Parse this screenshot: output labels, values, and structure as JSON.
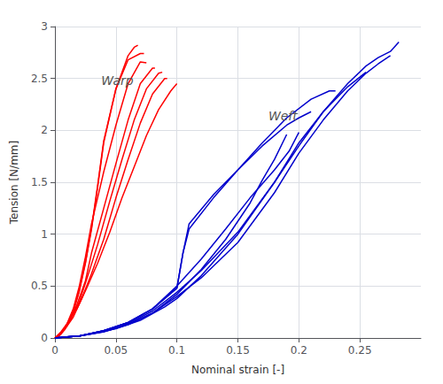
{
  "chart_data": {
    "type": "line",
    "xlabel": "Nominal strain [-]",
    "ylabel": "Tension [N/mm]",
    "xlim": [
      0,
      0.3
    ],
    "ylim": [
      0,
      3.0
    ],
    "xticks": [
      0,
      0.05,
      0.1,
      0.15,
      0.2,
      0.25
    ],
    "yticks": [
      0,
      0.5,
      1.0,
      1.5,
      2.0,
      2.5,
      3.0
    ],
    "grid": true,
    "annotations": [
      {
        "text": "Warp",
        "x": 0.038,
        "y": 2.42
      },
      {
        "text": "Weft",
        "x": 0.175,
        "y": 2.08
      }
    ],
    "series": [
      {
        "color": "#ff0000",
        "line_style": "solid",
        "x": [
          0.0,
          0.002,
          0.005,
          0.01,
          0.015,
          0.02,
          0.025,
          0.03,
          0.035,
          0.04,
          0.05,
          0.06,
          0.065,
          0.068
        ],
        "values": [
          0.0,
          0.01,
          0.04,
          0.12,
          0.25,
          0.45,
          0.72,
          1.05,
          1.45,
          1.88,
          2.4,
          2.72,
          2.8,
          2.82
        ]
      },
      {
        "color": "#ff0000",
        "line_style": "solid",
        "x": [
          0.0,
          0.002,
          0.005,
          0.01,
          0.015,
          0.02,
          0.025,
          0.03,
          0.035,
          0.04,
          0.05,
          0.06,
          0.07,
          0.073
        ],
        "values": [
          0.0,
          0.01,
          0.04,
          0.12,
          0.26,
          0.46,
          0.73,
          1.06,
          1.47,
          1.9,
          2.4,
          2.68,
          2.74,
          2.74
        ]
      },
      {
        "color": "#ff0000",
        "line_style": "solid",
        "x": [
          0.0,
          0.003,
          0.006,
          0.01,
          0.015,
          0.02,
          0.025,
          0.03,
          0.04,
          0.05,
          0.06,
          0.07,
          0.075
        ],
        "values": [
          0.0,
          0.02,
          0.06,
          0.14,
          0.28,
          0.5,
          0.78,
          1.1,
          1.6,
          2.05,
          2.45,
          2.66,
          2.65
        ]
      },
      {
        "color": "#ff0000",
        "line_style": "solid",
        "x": [
          0.0,
          0.003,
          0.007,
          0.012,
          0.018,
          0.025,
          0.03,
          0.04,
          0.05,
          0.06,
          0.07,
          0.08,
          0.082
        ],
        "values": [
          0.0,
          0.02,
          0.07,
          0.16,
          0.32,
          0.55,
          0.82,
          1.25,
          1.68,
          2.1,
          2.45,
          2.6,
          2.6
        ]
      },
      {
        "color": "#ff0000",
        "line_style": "solid",
        "x": [
          0.0,
          0.004,
          0.008,
          0.013,
          0.02,
          0.027,
          0.035,
          0.045,
          0.055,
          0.065,
          0.075,
          0.085,
          0.088
        ],
        "values": [
          0.0,
          0.03,
          0.08,
          0.18,
          0.35,
          0.6,
          0.9,
          1.32,
          1.72,
          2.1,
          2.4,
          2.55,
          2.56
        ]
      },
      {
        "color": "#ff0000",
        "line_style": "solid",
        "x": [
          0.0,
          0.004,
          0.009,
          0.015,
          0.022,
          0.03,
          0.04,
          0.05,
          0.06,
          0.07,
          0.08,
          0.09,
          0.092
        ],
        "values": [
          0.0,
          0.04,
          0.1,
          0.2,
          0.38,
          0.62,
          0.95,
          1.35,
          1.72,
          2.07,
          2.35,
          2.5,
          2.5
        ]
      },
      {
        "color": "#ff0000",
        "line_style": "solid",
        "x": [
          0.0,
          0.005,
          0.01,
          0.018,
          0.026,
          0.035,
          0.045,
          0.055,
          0.065,
          0.075,
          0.085,
          0.095,
          0.1
        ],
        "values": [
          0.0,
          0.06,
          0.14,
          0.28,
          0.48,
          0.72,
          1.02,
          1.35,
          1.65,
          1.95,
          2.2,
          2.38,
          2.45
        ]
      },
      {
        "color": "#0000cc",
        "line_style": "solid",
        "x": [
          0.0,
          0.01,
          0.02,
          0.03,
          0.05,
          0.07,
          0.09,
          0.1,
          0.12,
          0.15,
          0.18,
          0.2,
          0.22,
          0.24,
          0.255,
          0.265,
          0.275,
          0.282
        ],
        "values": [
          0.0,
          0.01,
          0.02,
          0.04,
          0.09,
          0.17,
          0.3,
          0.38,
          0.6,
          1.0,
          1.5,
          1.85,
          2.18,
          2.45,
          2.62,
          2.7,
          2.76,
          2.85
        ]
      },
      {
        "color": "#0000cc",
        "line_style": "solid",
        "x": [
          0.0,
          0.01,
          0.02,
          0.04,
          0.06,
          0.08,
          0.1,
          0.12,
          0.15,
          0.18,
          0.2,
          0.22,
          0.24,
          0.255,
          0.265,
          0.275
        ],
        "values": [
          0.0,
          0.01,
          0.02,
          0.06,
          0.13,
          0.24,
          0.4,
          0.58,
          0.92,
          1.4,
          1.78,
          2.1,
          2.38,
          2.55,
          2.64,
          2.72
        ]
      },
      {
        "color": "#0000cc",
        "line_style": "solid",
        "x": [
          0.0,
          0.01,
          0.02,
          0.04,
          0.06,
          0.08,
          0.1,
          0.12,
          0.15,
          0.18,
          0.2,
          0.22,
          0.24,
          0.255
        ],
        "values": [
          0.0,
          0.01,
          0.02,
          0.07,
          0.14,
          0.26,
          0.44,
          0.65,
          1.02,
          1.5,
          1.88,
          2.18,
          2.42,
          2.56
        ]
      },
      {
        "color": "#0000cc",
        "line_style": "solid",
        "x": [
          0.0,
          0.01,
          0.02,
          0.04,
          0.06,
          0.08,
          0.1,
          0.105,
          0.11,
          0.13,
          0.15,
          0.17,
          0.19,
          0.21,
          0.225,
          0.23
        ],
        "values": [
          0.0,
          0.01,
          0.02,
          0.07,
          0.15,
          0.28,
          0.48,
          0.82,
          1.05,
          1.35,
          1.62,
          1.88,
          2.12,
          2.3,
          2.38,
          2.38
        ]
      },
      {
        "color": "#0000cc",
        "line_style": "solid",
        "x": [
          0.0,
          0.01,
          0.02,
          0.04,
          0.06,
          0.08,
          0.1,
          0.105,
          0.11,
          0.13,
          0.15,
          0.17,
          0.19,
          0.2,
          0.21
        ],
        "values": [
          0.0,
          0.01,
          0.02,
          0.07,
          0.15,
          0.28,
          0.48,
          0.82,
          1.1,
          1.38,
          1.62,
          1.85,
          2.05,
          2.12,
          2.18
        ]
      },
      {
        "color": "#0000cc",
        "line_style": "solid",
        "x": [
          0.0,
          0.01,
          0.02,
          0.04,
          0.06,
          0.08,
          0.1,
          0.12,
          0.14,
          0.16,
          0.18,
          0.192,
          0.2
        ],
        "values": [
          0.0,
          0.01,
          0.02,
          0.07,
          0.15,
          0.28,
          0.5,
          0.76,
          1.05,
          1.35,
          1.62,
          1.8,
          1.98
        ]
      },
      {
        "color": "#0000cc",
        "line_style": "solid",
        "x": [
          0.0,
          0.01,
          0.02,
          0.04,
          0.06,
          0.08,
          0.1,
          0.12,
          0.14,
          0.16,
          0.17,
          0.18,
          0.19
        ],
        "values": [
          0.0,
          0.01,
          0.02,
          0.06,
          0.13,
          0.24,
          0.42,
          0.66,
          0.95,
          1.3,
          1.52,
          1.72,
          1.96
        ]
      }
    ]
  }
}
